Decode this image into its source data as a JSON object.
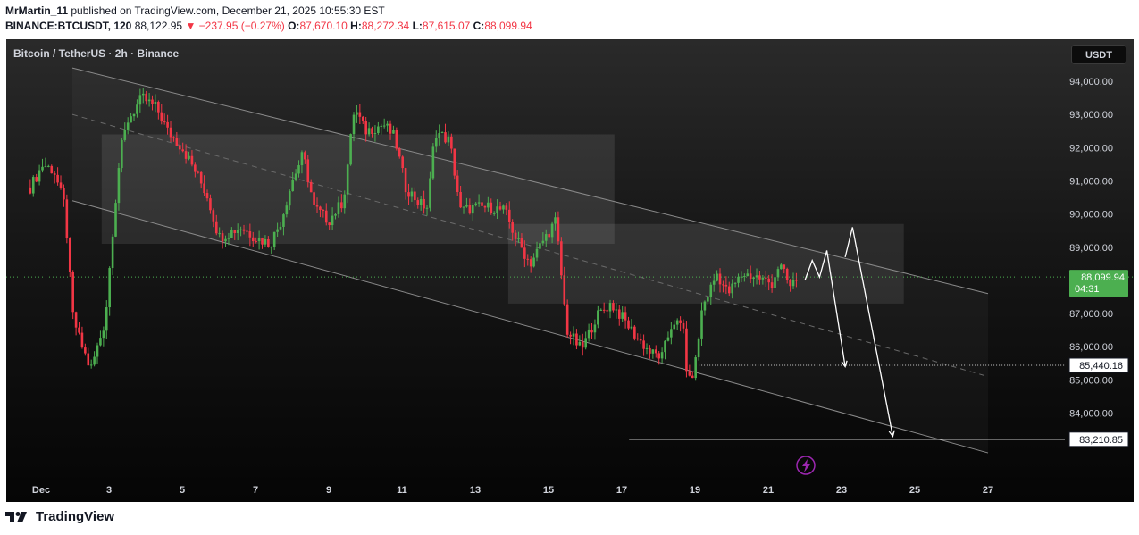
{
  "header": {
    "author": "MrMartin_11",
    "published": "published on TradingView.com, December 21, 2025 10:55:30 EST",
    "symbol": "BINANCE:BTCUSDT, 120",
    "last": "88,122.95",
    "change_arrow": "▼",
    "change": "−237.95 (−0.27%)",
    "o_label": "O:",
    "o_value": "87,670.10",
    "h_label": "H:",
    "h_value": "88,272.34",
    "l_label": "L:",
    "l_value": "87,615.07",
    "c_label": "C:",
    "c_value": "88,099.94"
  },
  "chart": {
    "title": "Bitcoin / TetherUS · 2h · Binance",
    "currency": "USDT",
    "current_price_label": "88,099.94",
    "countdown": "04:31",
    "target1_label": "85,440.16",
    "target2_label": "83,210.85",
    "flash_icon": "lightning-icon"
  },
  "footer": {
    "brand": "TradingView"
  },
  "colors": {
    "up": "#4caf50",
    "down": "#f23645",
    "price_tag": "#4caf50",
    "background": "#161616"
  },
  "chart_data": {
    "type": "candlestick",
    "interval": "2h",
    "ylim": [
      82700,
      95000
    ],
    "y_ticks": [
      84000,
      85000,
      86000,
      87000,
      88000,
      89000,
      90000,
      91000,
      92000,
      93000,
      94000
    ],
    "y_tick_labels": [
      "84,000.00",
      "85,000.00",
      "86,000.00",
      "87,000.00",
      "88,000.00",
      "89,000.00",
      "90,000.00",
      "91,000.00",
      "92,000.00",
      "93,000.00",
      "94,000.00"
    ],
    "x_ticks": [
      1,
      3,
      5,
      7,
      9,
      11,
      13,
      15,
      17,
      19,
      21,
      23,
      25,
      27
    ],
    "x_tick_labels": [
      "Dec",
      "3",
      "5",
      "7",
      "9",
      "11",
      "13",
      "15",
      "17",
      "19",
      "21",
      "23",
      "25",
      "27"
    ],
    "xlim": [
      0.85,
      29.0
    ],
    "path": [
      [
        0.85,
        90800
      ],
      [
        1.2,
        91500
      ],
      [
        1.5,
        91300
      ],
      [
        1.8,
        90200
      ],
      [
        2.0,
        87000
      ],
      [
        2.2,
        86200
      ],
      [
        2.5,
        85300
      ],
      [
        2.9,
        86800
      ],
      [
        3.1,
        89500
      ],
      [
        3.3,
        91800
      ],
      [
        3.5,
        92800
      ],
      [
        3.9,
        93500
      ],
      [
        4.3,
        93200
      ],
      [
        4.6,
        92500
      ],
      [
        5.0,
        92000
      ],
      [
        5.4,
        91200
      ],
      [
        5.7,
        90500
      ],
      [
        6.0,
        89300
      ],
      [
        6.6,
        89600
      ],
      [
        7.0,
        89300
      ],
      [
        7.4,
        89100
      ],
      [
        7.7,
        89800
      ],
      [
        8.0,
        91000
      ],
      [
        8.3,
        91800
      ],
      [
        8.6,
        90200
      ],
      [
        9.0,
        89800
      ],
      [
        9.4,
        90400
      ],
      [
        9.7,
        93200
      ],
      [
        10.0,
        92500
      ],
      [
        10.5,
        92700
      ],
      [
        10.8,
        92300
      ],
      [
        11.1,
        90800
      ],
      [
        11.5,
        90300
      ],
      [
        11.7,
        90200
      ],
      [
        11.9,
        92500
      ],
      [
        12.3,
        92200
      ],
      [
        12.6,
        90100
      ],
      [
        13.0,
        90200
      ],
      [
        13.4,
        90200
      ],
      [
        13.8,
        90100
      ],
      [
        14.1,
        89300
      ],
      [
        14.5,
        88500
      ],
      [
        14.8,
        89100
      ],
      [
        15.2,
        89800
      ],
      [
        15.5,
        86500
      ],
      [
        15.9,
        85900
      ],
      [
        16.3,
        86900
      ],
      [
        16.7,
        87300
      ],
      [
        17.0,
        86900
      ],
      [
        17.4,
        86300
      ],
      [
        17.8,
        85800
      ],
      [
        18.1,
        85700
      ],
      [
        18.4,
        86800
      ],
      [
        18.7,
        86500
      ],
      [
        18.8,
        84800
      ],
      [
        19.0,
        85400
      ],
      [
        19.2,
        87200
      ],
      [
        19.6,
        88200
      ],
      [
        19.9,
        87600
      ],
      [
        20.3,
        88200
      ],
      [
        20.7,
        88100
      ],
      [
        21.1,
        87900
      ],
      [
        21.3,
        88500
      ],
      [
        21.6,
        87800
      ],
      [
        21.8,
        88100
      ]
    ],
    "channel": {
      "upper": [
        [
          2.0,
          94400
        ],
        [
          27.0,
          87600
        ]
      ],
      "middle": [
        [
          2.0,
          93000
        ],
        [
          27.0,
          85100
        ]
      ],
      "lower": [
        [
          2.0,
          90400
        ],
        [
          27.0,
          82800
        ]
      ]
    },
    "shaded_zones": [
      {
        "x0": 2.8,
        "x1": 16.8,
        "y0": 89100,
        "y1": 92400
      },
      {
        "x0": 13.9,
        "x1": 24.7,
        "y0": 87300,
        "y1": 89700
      }
    ],
    "projection_1": [
      [
        22.0,
        88000
      ],
      [
        22.2,
        88600
      ],
      [
        22.4,
        88100
      ],
      [
        22.6,
        88900
      ],
      [
        23.1,
        85400
      ]
    ],
    "projection_2": [
      [
        23.1,
        88700
      ],
      [
        23.3,
        89600
      ],
      [
        24.4,
        83300
      ]
    ],
    "levels": [
      {
        "price": 85440.16,
        "x_start": 19.1,
        "style": "dotted"
      },
      {
        "price": 83210.85,
        "x_start": 17.2,
        "style": "solid"
      },
      {
        "price": 88099.94,
        "x_start": 0.85,
        "style": "dotted-green"
      }
    ]
  }
}
